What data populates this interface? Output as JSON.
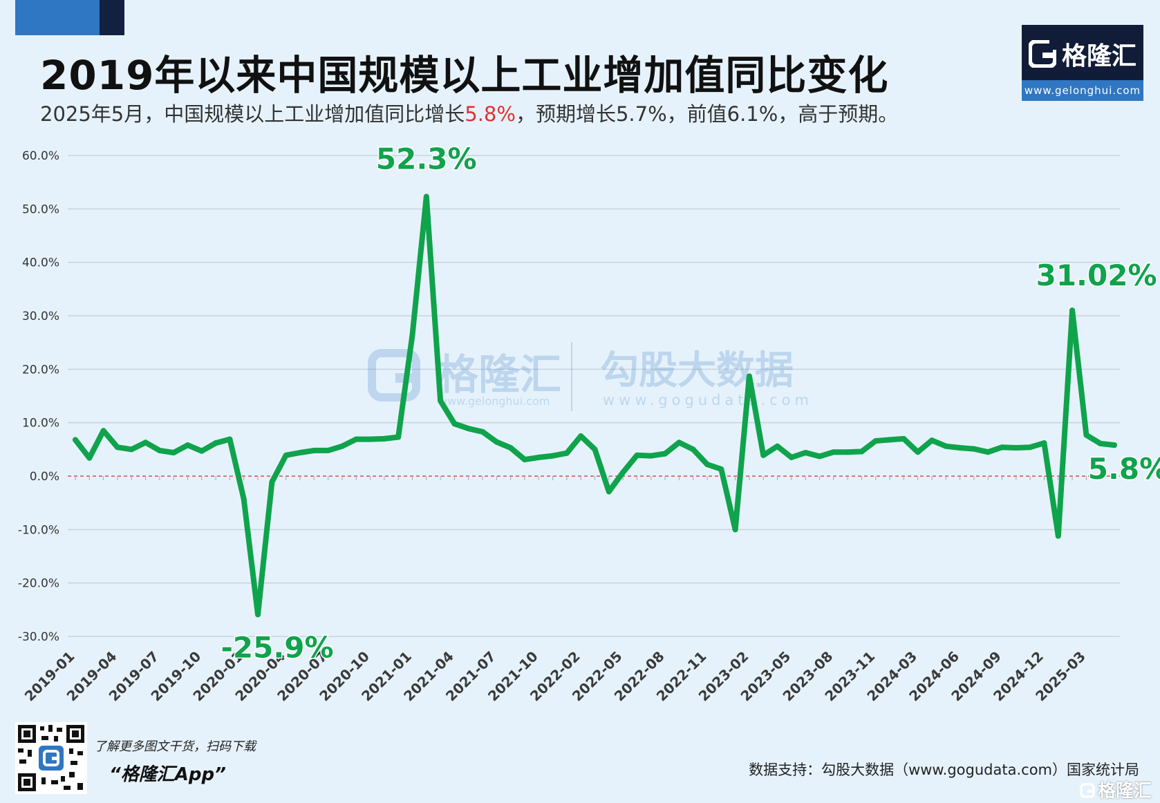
{
  "header": {
    "title": "2019年以来中国规模以上工业增加值同比变化",
    "subtitle_prefix": "2025年5月，中国规模以上工业增加值同比增长",
    "subtitle_highlight": "5.8%",
    "subtitle_suffix": "，预期增长5.7%，前值6.1%，高于预期。"
  },
  "logo": {
    "brand": "格隆汇",
    "url": "www.gelonghui.com"
  },
  "watermark": {
    "brand1": "格隆汇",
    "url1": "www.gelonghui.com",
    "brand2": "勾股大数据",
    "url2": "www.gogudata.com"
  },
  "footer": {
    "promo": "了解更多图文干货，扫码下载",
    "app": "“格隆汇App”",
    "source": "数据支持：勾股大数据（www.gogudata.com）国家统计局",
    "brand": "格隆汇"
  },
  "colors": {
    "line": "#0fa34c",
    "zero_line": "#d94b4b",
    "grid": "#c5d3de",
    "annotation": "#0fa34c",
    "highlight": "#e03131"
  },
  "chart_data": {
    "type": "line",
    "title": "2019年以来中国规模以上工业增加值同比变化",
    "ylim": [
      -30,
      60
    ],
    "yticks": [
      60,
      50,
      40,
      30,
      20,
      10,
      0,
      -10,
      -20,
      -30
    ],
    "ytick_labels": [
      "60.0%",
      "50.0%",
      "40.0%",
      "30.0%",
      "20.0%",
      "10.0%",
      "0.0%",
      "-10.0%",
      "-20.0%",
      "-30.0%"
    ],
    "xtick_labels": [
      "2019-01",
      "2019-04",
      "2019-07",
      "2019-10",
      "2020-01",
      "2020-04",
      "2020-07",
      "2020-10",
      "2021-01",
      "2021-04",
      "2021-07",
      "2021-10",
      "2022-02",
      "2022-05",
      "2022-08",
      "2022-11",
      "2023-02",
      "2023-05",
      "2023-08",
      "2023-11",
      "2024-03",
      "2024-06",
      "2024-09",
      "2024-12",
      "2025-03"
    ],
    "xtick_index": [
      0,
      3,
      6,
      9,
      12,
      15,
      18,
      21,
      24,
      27,
      30,
      33,
      36,
      39,
      42,
      45,
      48,
      51,
      54,
      57,
      60,
      63,
      66,
      69,
      72
    ],
    "x": [
      "2019-01",
      "2019-02",
      "2019-03",
      "2019-04",
      "2019-05",
      "2019-06",
      "2019-07",
      "2019-08",
      "2019-09",
      "2019-10",
      "2019-11",
      "2019-12",
      "2020-01",
      "2020-02",
      "2020-03",
      "2020-04",
      "2020-05",
      "2020-06",
      "2020-07",
      "2020-08",
      "2020-09",
      "2020-10",
      "2020-11",
      "2020-12",
      "2021-01",
      "2021-02",
      "2021-03",
      "2021-04",
      "2021-05",
      "2021-06",
      "2021-07",
      "2021-08",
      "2021-09",
      "2021-10",
      "2021-11",
      "2021-12",
      "2022-02",
      "2022-03",
      "2022-04",
      "2022-05",
      "2022-06",
      "2022-07",
      "2022-08",
      "2022-09",
      "2022-10",
      "2022-11",
      "2022-12",
      "2023-01",
      "2023-02",
      "2023-03",
      "2023-04",
      "2023-05",
      "2023-06",
      "2023-07",
      "2023-08",
      "2023-09",
      "2023-10",
      "2023-11",
      "2023-12",
      "2024-02",
      "2024-03",
      "2024-04",
      "2024-05",
      "2024-06",
      "2024-07",
      "2024-08",
      "2024-09",
      "2024-10",
      "2024-11",
      "2024-12",
      "2025-01",
      "2025-02",
      "2025-03",
      "2025-04",
      "2025-05"
    ],
    "series": [
      {
        "values": [
          6.8,
          3.4,
          8.5,
          5.4,
          5.0,
          6.3,
          4.8,
          4.4,
          5.8,
          4.7,
          6.2,
          6.9,
          -4.3,
          -25.9,
          -1.1,
          3.9,
          4.4,
          4.8,
          4.8,
          5.6,
          6.9,
          6.9,
          7.0,
          7.3,
          26.4,
          52.3,
          14.1,
          9.8,
          8.9,
          8.3,
          6.4,
          5.3,
          3.1,
          3.5,
          3.8,
          4.3,
          7.5,
          5.0,
          -2.9,
          0.7,
          3.9,
          3.8,
          4.2,
          6.3,
          5.0,
          2.2,
          1.3,
          -10.0,
          18.7,
          3.9,
          5.6,
          3.5,
          4.4,
          3.7,
          4.5,
          4.5,
          4.6,
          6.6,
          6.8,
          7.0,
          4.5,
          6.7,
          5.6,
          5.3,
          5.1,
          4.5,
          5.4,
          5.3,
          5.4,
          6.2,
          -11.2,
          31.02,
          7.7,
          6.1,
          5.8
        ]
      }
    ],
    "annotations": [
      {
        "label": "52.3%",
        "index": 25,
        "value": 52.3
      },
      {
        "label": "-25.9%",
        "index": 13,
        "value": -25.9
      },
      {
        "label": "31.02%",
        "index": 71,
        "value": 31.02
      },
      {
        "label": "5.8%",
        "index": 74,
        "value": 5.8
      }
    ],
    "zero_line": "dashed",
    "grid": "horizontal"
  }
}
